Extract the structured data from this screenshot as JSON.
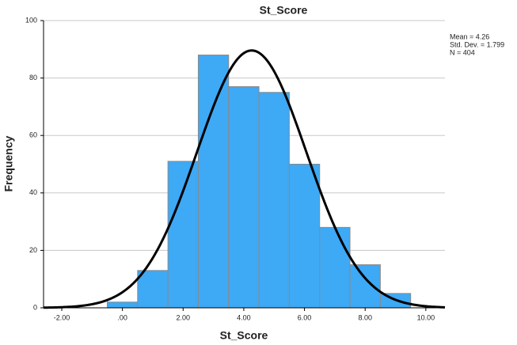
{
  "chart_data": {
    "type": "histogram",
    "title": "St_Score",
    "x_label": "St_Score",
    "y_label": "Frequency",
    "bins": [
      -0.5,
      0.5,
      1.5,
      2.5,
      3.5,
      4.5,
      5.5,
      6.5,
      7.5,
      8.5,
      9.5
    ],
    "values": [
      2,
      13,
      51,
      88,
      77,
      75,
      50,
      28,
      15,
      5
    ],
    "color": "#3ea9f5",
    "edge_color": "#8a8a8a",
    "curve_color": "#000000",
    "stats": [
      {
        "value": 4.26,
        "label": "Mean = 4.26"
      },
      {
        "value": 1.799,
        "label": "Std. Dev. = 1.799"
      },
      {
        "value": 404,
        "label": "N = 404"
      }
    ],
    "xlim": [
      -2.6,
      10.63
    ],
    "ylim": [
      0,
      100
    ],
    "xticks": [
      {
        "value": -2,
        "label": "-2.00"
      },
      {
        "value": 0,
        "label": ".00"
      },
      {
        "value": 2,
        "label": "2.00"
      },
      {
        "value": 4,
        "label": "4.00"
      },
      {
        "value": 6,
        "label": "6.00"
      },
      {
        "value": 8,
        "label": "8.00"
      },
      {
        "value": 10,
        "label": "10.00"
      }
    ],
    "yticks": [
      0,
      20,
      40,
      60,
      80,
      100
    ],
    "grid": true
  }
}
